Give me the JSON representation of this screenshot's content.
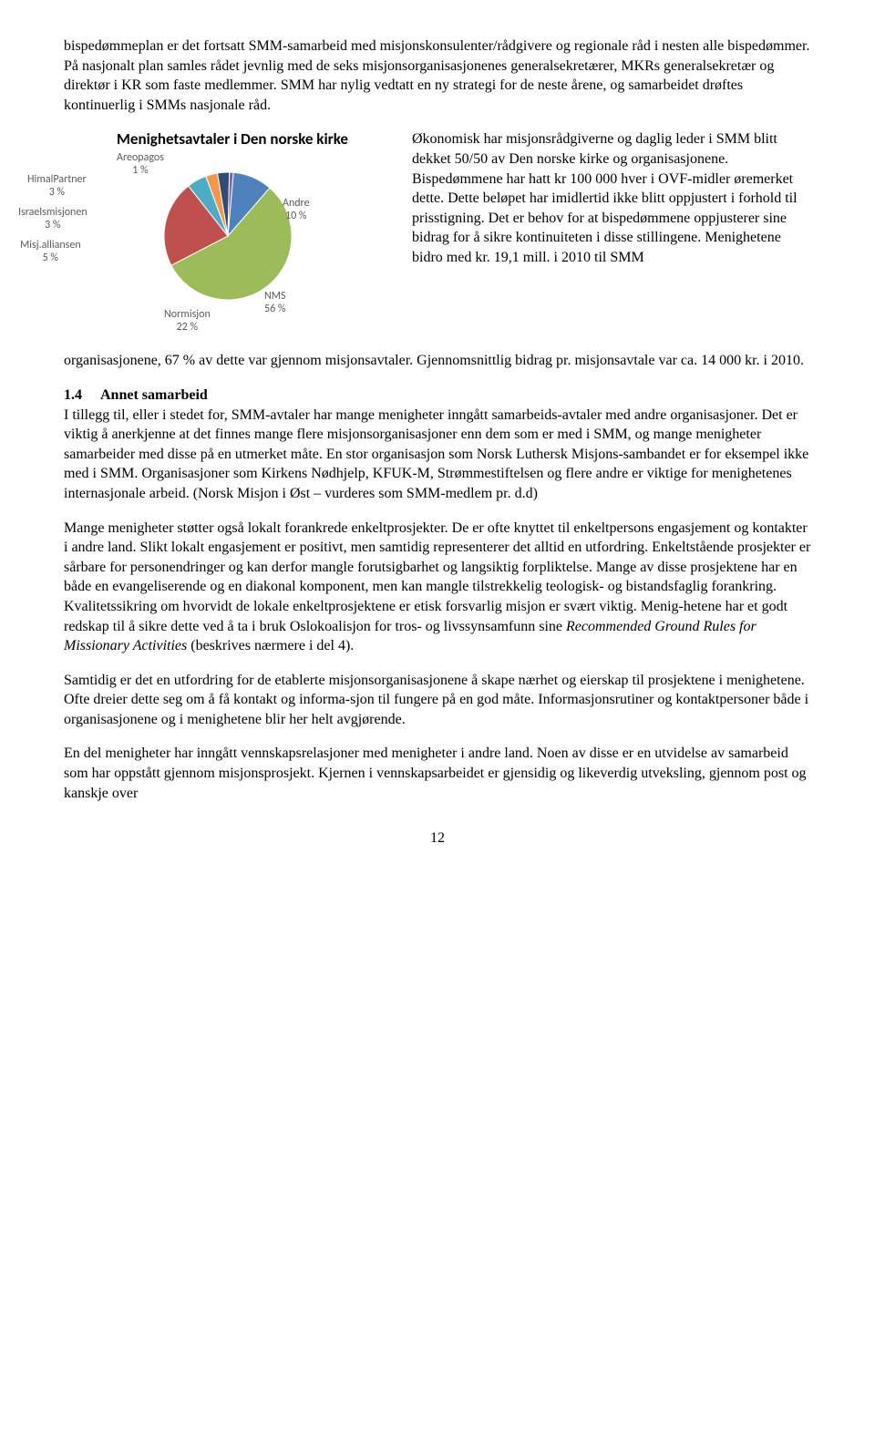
{
  "para1": "bispedømmeplan er det fortsatt SMM-samarbeid med misjonskonsulenter/rådgivere og regionale råd i nesten alle bispedømmer. På nasjonalt plan samles rådet jevnlig med de seks misjonsorganisasjonenes generalsekretærer, MKRs generalsekretær og direktør i KR som faste medlemmer. SMM har nylig vedtatt en ny strategi for de neste årene, og samarbeidet drøftes kontinuerlig i SMMs nasjonale råd.",
  "chart": {
    "title": "Menighetsavtaler i Den norske kirke",
    "slices": [
      {
        "label": "NMS",
        "pct": "56 %",
        "value": 56,
        "color": "#9cbb59"
      },
      {
        "label": "Normisjon",
        "pct": "22 %",
        "value": 22,
        "color": "#c0504d"
      },
      {
        "label": "Andre",
        "pct": "10 %",
        "value": 10,
        "color": "#4f81bd"
      },
      {
        "label": "Misj.alliansen",
        "pct": "5 %",
        "value": 5,
        "color": "#4bacc6"
      },
      {
        "label": "Israelsmisjonen",
        "pct": "3 %",
        "value": 3,
        "color": "#f79646"
      },
      {
        "label": "HimalPartner",
        "pct": "3 %",
        "value": 3,
        "color": "#2c4d75"
      },
      {
        "label": "Areopagos",
        "pct": "1 %",
        "value": 1,
        "color": "#8064a2"
      }
    ],
    "label_fontsize": 12,
    "title_fontsize": 17,
    "background_color": "#ffffff",
    "radius": 70
  },
  "sideText": "Økonomisk har misjonsrådgiverne og daglig leder i SMM blitt dekket 50/50 av Den norske kirke og organisasjonene. Bispedømmene har hatt kr 100 000 hver i OVF-midler øremerket dette. Dette beløpet har imidlertid ikke blitt oppjustert i forhold til prisstigning. Det er behov for at bispedømmene oppjusterer sine bidrag for å sikre kontinuiteten i disse stillingene. Menighetene bidro med kr. 19,1 mill. i 2010 til SMM",
  "sideTextCont": "organisasjonene, 67 % av dette var gjennom misjonsavtaler. Gjennomsnittlig bidrag pr. misjonsavtale var ca. 14 000 kr. i 2010.",
  "section14_num": "1.4",
  "section14_title": "Annet samarbeid",
  "para14a": "I tillegg til, eller i stedet for, SMM-avtaler har mange menigheter inngått samarbeids-avtaler med andre organisasjoner. Det er viktig å anerkjenne at det finnes mange flere misjonsorganisasjoner enn dem som er med i SMM, og mange menigheter samarbeider med disse på en utmerket måte. En stor organisasjon som Norsk Luthersk Misjons-sambandet er for eksempel ikke med i SMM. Organisasjoner som Kirkens Nødhjelp, KFUK-M, Strømmestiftelsen og flere andre er viktige for menighetenes internasjonale arbeid. (Norsk Misjon i Øst – vurderes som SMM-medlem pr. d.d)",
  "para14b_pre": "Mange menigheter støtter også lokalt forankrede enkeltprosjekter. De er ofte knyttet til enkeltpersons engasjement og kontakter i andre land. Slikt lokalt engasjement er positivt, men samtidig representerer det alltid en utfordring. Enkeltstående prosjekter er sårbare for personendringer og kan derfor mangle forutsigbarhet og langsiktig forpliktelse. Mange av disse prosjektene har en både en evangeliserende og en diakonal komponent, men kan mangle tilstrekkelig teologisk- og bistandsfaglig forankring. Kvalitetssikring om hvorvidt de lokale enkeltprosjektene er etisk forsvarlig misjon er svært viktig. Menig-hetene har et godt redskap til å sikre dette ved å ta i bruk Oslokoalisjon for tros- og livssynsamfunn sine ",
  "para14b_italic": "Recommended Ground Rules for Missionary Activities",
  "para14b_post": " (beskrives nærmere i del 4).",
  "para14c": "Samtidig er det en utfordring for de etablerte misjonsorganisasjonene å skape nærhet og eierskap til prosjektene i menighetene. Ofte dreier dette seg om å få kontakt og informa-sjon til fungere på en god måte. Informasjonsrutiner og kontaktpersoner både i organisasjonene og i menighetene blir her helt avgjørende.",
  "para14d": "En del menigheter har inngått vennskapsrelasjoner med menigheter i andre land. Noen av disse er en utvidelse av samarbeid som har oppstått gjennom misjonsprosjekt. Kjernen i vennskapsarbeidet er gjensidig og likeverdig utveksling, gjennom post og kanskje over",
  "pageNumber": "12"
}
